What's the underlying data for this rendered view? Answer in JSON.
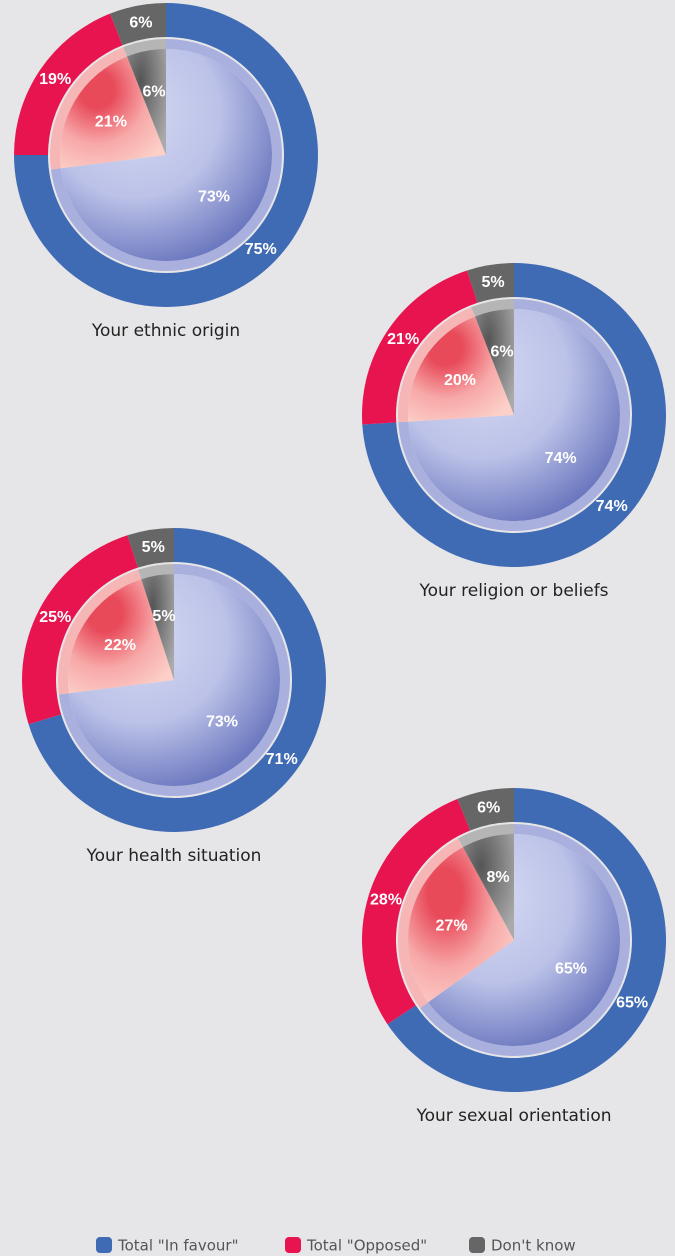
{
  "chart_data": [
    {
      "type": "nested_pie",
      "title": "Your ethnic origin",
      "outer": [
        75,
        19,
        6
      ],
      "outer_labels": [
        "75%",
        "19%",
        "6%"
      ],
      "inner": [
        73,
        21,
        6
      ],
      "inner_labels": [
        "73%",
        "21%",
        "6%"
      ]
    },
    {
      "type": "nested_pie",
      "title": "Your religion or beliefs",
      "outer": [
        74,
        21,
        5
      ],
      "outer_labels": [
        "74%",
        "21%",
        "5%"
      ],
      "inner": [
        74,
        20,
        6
      ],
      "inner_labels": [
        "74%",
        "20%",
        "6%"
      ]
    },
    {
      "type": "nested_pie",
      "title": "Your health situation",
      "outer": [
        71,
        25,
        5
      ],
      "outer_labels": [
        "71%",
        "25%",
        "5%"
      ],
      "inner": [
        73,
        22,
        5
      ],
      "inner_labels": [
        "73%",
        "22%",
        "5%"
      ]
    },
    {
      "type": "nested_pie",
      "title": "Your sexual orientation",
      "outer": [
        65,
        28,
        6
      ],
      "outer_labels": [
        "65%",
        "28%",
        "6%"
      ],
      "inner": [
        65,
        27,
        8
      ],
      "inner_labels": [
        "65%",
        "27%",
        "8%"
      ]
    }
  ],
  "legend": [
    {
      "name": "Total \"In favour\"",
      "color": "#3f6ab4"
    },
    {
      "name": "Total \"Opposed\"",
      "color": "#e8144f"
    },
    {
      "name": "Don't know",
      "color": "#666666"
    }
  ]
}
